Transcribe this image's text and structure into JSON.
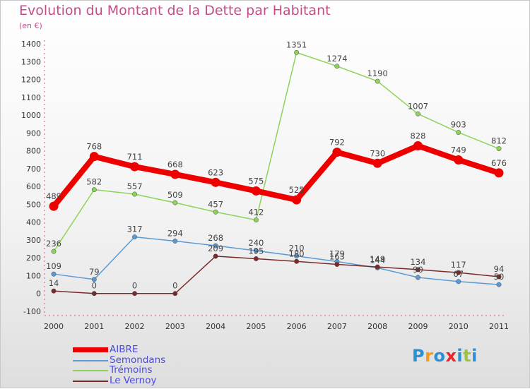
{
  "title": "Evolution du Montant de la Dette par Habitant",
  "subtitle": "(en €)",
  "logo": {
    "letters": [
      "P",
      "r",
      "o",
      "x",
      "i",
      "t",
      "i"
    ],
    "colors": [
      "#2a8fd6",
      "#f59a1a",
      "#2a8fd6",
      "#e8262a",
      "#2a8fd6",
      "#9ac53c",
      "#2a8fd6"
    ]
  },
  "chart_data": {
    "type": "line",
    "x": [
      "2000",
      "2001",
      "2002",
      "2003",
      "2004",
      "2005",
      "2006",
      "2007",
      "2008",
      "2009",
      "2010",
      "2011"
    ],
    "ylim": [
      -100,
      1400
    ],
    "yticks": [
      "-100",
      "0",
      "100",
      "200",
      "300",
      "400",
      "500",
      "600",
      "700",
      "800",
      "900",
      "1000",
      "1100",
      "1200",
      "1300",
      "1400"
    ],
    "legend_position": "bottom-left",
    "series": [
      {
        "name": "AIBRE",
        "color": "#ee0000",
        "thick": true,
        "values": [
          489,
          768,
          711,
          668,
          623,
          575,
          525,
          792,
          730,
          828,
          749,
          676
        ],
        "labels": [
          "489",
          "768",
          "711",
          "668",
          "623",
          "575",
          "525",
          "792",
          "730",
          "828",
          "749",
          "676"
        ]
      },
      {
        "name": "Semondans",
        "color": "#5b9bd5",
        "thick": false,
        "values": [
          109,
          79,
          317,
          294,
          268,
          240,
          210,
          179,
          144,
          90,
          67,
          50
        ],
        "labels": [
          "109",
          "79",
          "317",
          "294",
          "268",
          "240",
          "210",
          "179",
          "144",
          "90",
          "67",
          "50"
        ]
      },
      {
        "name": "Trémoins",
        "color": "#8dd35a",
        "thick": false,
        "values": [
          236,
          582,
          557,
          509,
          457,
          412,
          1351,
          1274,
          1190,
          1007,
          903,
          812
        ],
        "labels": [
          "236",
          "582",
          "557",
          "509",
          "457",
          "412",
          "1351",
          "1274",
          "1190",
          "1007",
          "903",
          "812"
        ]
      },
      {
        "name": "Le Vernoy",
        "color": "#7b2a2a",
        "thick": false,
        "values": [
          14,
          0,
          0,
          0,
          209,
          195,
          180,
          163,
          149,
          134,
          117,
          94
        ],
        "labels": [
          "14",
          "0",
          "0",
          "0",
          "209",
          "195",
          "180",
          "163",
          "149",
          "134",
          "117",
          "94"
        ]
      }
    ]
  }
}
